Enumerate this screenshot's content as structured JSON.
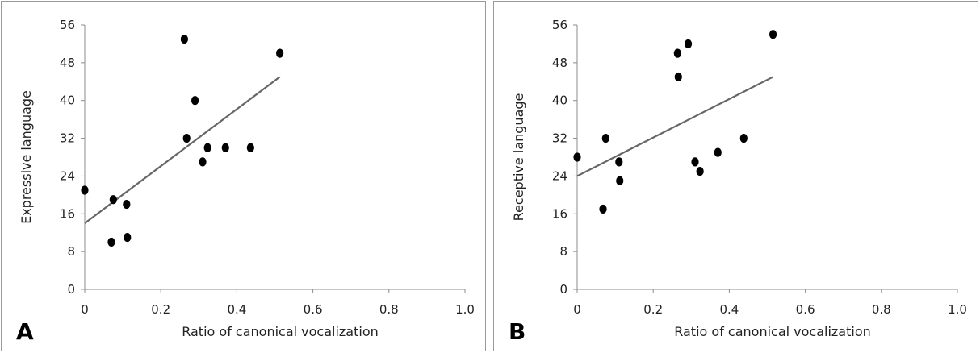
{
  "chart_data": [
    {
      "type": "scatter",
      "panel_label": "A",
      "xlabel": "Ratio of canonical vocalization",
      "ylabel": "Expressive language",
      "xlim": [
        0,
        1.0
      ],
      "ylim": [
        0,
        56
      ],
      "xticks": [
        "0",
        "0.2",
        "0.4",
        "0.6",
        "0.8",
        "1.0"
      ],
      "yticks": [
        "0",
        "8",
        "16",
        "24",
        "32",
        "40",
        "48",
        "56"
      ],
      "points": [
        {
          "x": 0.0,
          "y": 21
        },
        {
          "x": 0.07,
          "y": 10
        },
        {
          "x": 0.075,
          "y": 19
        },
        {
          "x": 0.11,
          "y": 18
        },
        {
          "x": 0.112,
          "y": 11
        },
        {
          "x": 0.262,
          "y": 53
        },
        {
          "x": 0.268,
          "y": 32
        },
        {
          "x": 0.29,
          "y": 40
        },
        {
          "x": 0.31,
          "y": 27
        },
        {
          "x": 0.323,
          "y": 30
        },
        {
          "x": 0.37,
          "y": 30
        },
        {
          "x": 0.436,
          "y": 30
        },
        {
          "x": 0.513,
          "y": 50
        }
      ],
      "trendline": {
        "x": [
          0.0,
          0.513
        ],
        "y": [
          14,
          45
        ]
      },
      "grid": false,
      "colors": {
        "points": "#000000",
        "trendline": "#666666",
        "axis": "#8c8c8c"
      }
    },
    {
      "type": "scatter",
      "panel_label": "B",
      "xlabel": "Ratio of canonical vocalization",
      "ylabel": "Receptive language",
      "xlim": [
        0,
        1.0
      ],
      "ylim": [
        0,
        56
      ],
      "xticks": [
        "0",
        "0.2",
        "0.4",
        "0.6",
        "0.8",
        "1.0"
      ],
      "yticks": [
        "0",
        "8",
        "16",
        "24",
        "32",
        "40",
        "48",
        "56"
      ],
      "points": [
        {
          "x": 0.0,
          "y": 28
        },
        {
          "x": 0.068,
          "y": 17
        },
        {
          "x": 0.075,
          "y": 32
        },
        {
          "x": 0.11,
          "y": 27
        },
        {
          "x": 0.112,
          "y": 23
        },
        {
          "x": 0.264,
          "y": 50
        },
        {
          "x": 0.266,
          "y": 45
        },
        {
          "x": 0.292,
          "y": 52
        },
        {
          "x": 0.31,
          "y": 27
        },
        {
          "x": 0.323,
          "y": 25
        },
        {
          "x": 0.37,
          "y": 29
        },
        {
          "x": 0.438,
          "y": 32
        },
        {
          "x": 0.515,
          "y": 54
        }
      ],
      "trendline": {
        "x": [
          0.0,
          0.515
        ],
        "y": [
          24,
          45
        ]
      },
      "grid": false,
      "colors": {
        "points": "#000000",
        "trendline": "#666666",
        "axis": "#8c8c8c"
      }
    }
  ]
}
